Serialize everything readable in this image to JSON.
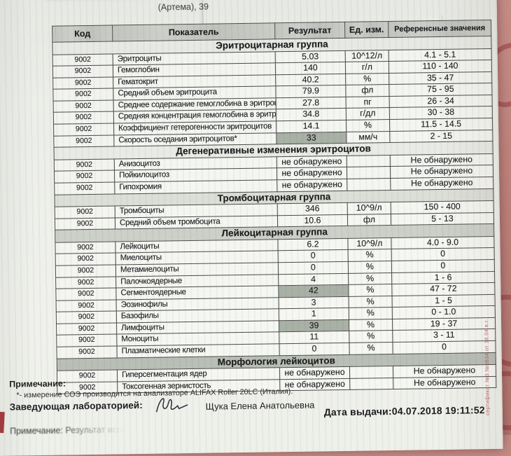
{
  "photo": {
    "top_line": "(Артема), 39",
    "side_stamp": "сертификат №3 №0834 от 18.04 в.г.",
    "fabric_color": "#c0857f",
    "fabric_swirl_color": "#943a40"
  },
  "table": {
    "columns": [
      "Код",
      "Показатель",
      "Результат",
      "Ед. изм.",
      "Референсные значения"
    ],
    "highlight_color": "#a9b1a6",
    "sections": [
      {
        "title": "Эритроцитарная группа",
        "bg": "#e7e9e4",
        "rows": [
          {
            "code": "9002",
            "name": "Эритроциты",
            "result": "5.03",
            "unit": "10^12/л",
            "ref": "4.1 - 5.1",
            "highlight": false
          },
          {
            "code": "9002",
            "name": "Гемоглобин",
            "result": "140",
            "unit": "г/л",
            "ref": "110 - 140",
            "highlight": false
          },
          {
            "code": "9002",
            "name": "Гематокрит",
            "result": "40.2",
            "unit": "%",
            "ref": "35 - 47",
            "highlight": false
          },
          {
            "code": "9002",
            "name": "Средний объем эритроцита",
            "result": "79.9",
            "unit": "фл",
            "ref": "75 - 95",
            "highlight": false
          },
          {
            "code": "9002",
            "name": "Среднее содержание гемоглобина в эритроците",
            "result": "27.8",
            "unit": "пг",
            "ref": "26 - 34",
            "highlight": false
          },
          {
            "code": "9002",
            "name": "Средняя концентрация гемоглобина в эритроците",
            "result": "34.8",
            "unit": "г/дл",
            "ref": "30 - 38",
            "highlight": false
          },
          {
            "code": "9002",
            "name": "Коэффициент гетерогенности эритроцитов",
            "result": "14.1",
            "unit": "%",
            "ref": "11.5 - 14.5",
            "highlight": false
          },
          {
            "code": "9002",
            "name": "Скорость оседания эритроцитов*",
            "result": "33",
            "unit": "мм/ч",
            "ref": "2 - 15",
            "highlight": true
          }
        ]
      },
      {
        "title": "Дегенеративные изменения эритроцитов",
        "bg": "#e9ebe6",
        "rows": [
          {
            "code": "9002",
            "name": "Анизоцитоз",
            "result": "не обнаружено",
            "unit": "",
            "ref": "Не обнаружено",
            "highlight": false
          },
          {
            "code": "9002",
            "name": "Пойкилоцитоз",
            "result": "не обнаружено",
            "unit": "",
            "ref": "Не обнаружено",
            "highlight": false
          },
          {
            "code": "9002",
            "name": "Гипохромия",
            "result": "не обнаружено",
            "unit": "",
            "ref": "Не обнаружено",
            "highlight": false
          }
        ]
      },
      {
        "title": "Тромбоцитарная группа",
        "bg": "#dcdfd8",
        "rows": [
          {
            "code": "9002",
            "name": "Тромбоциты",
            "result": "346",
            "unit": "10^9/л",
            "ref": "150 - 400",
            "highlight": false
          },
          {
            "code": "9002",
            "name": "Средний объем тромбоцита",
            "result": "10.6",
            "unit": "фл",
            "ref": "5 - 13",
            "highlight": false
          }
        ]
      },
      {
        "title": "Лейкоцитарная группа",
        "bg": "#ccd0c9",
        "rows": [
          {
            "code": "9002",
            "name": "Лейкоциты",
            "result": "6.2",
            "unit": "10^9/л",
            "ref": "4.0 - 9.0",
            "highlight": false
          },
          {
            "code": "9002",
            "name": "Миелоциты",
            "result": "0",
            "unit": "%",
            "ref": "0",
            "highlight": false
          },
          {
            "code": "9002",
            "name": "Метамиелоциты",
            "result": "0",
            "unit": "%",
            "ref": "0",
            "highlight": false
          },
          {
            "code": "9002",
            "name": "Палочкоядерные",
            "result": "4",
            "unit": "%",
            "ref": "1 - 6",
            "highlight": false
          },
          {
            "code": "9002",
            "name": "Сегментоядерные",
            "result": "42",
            "unit": "%",
            "ref": "47 - 72",
            "highlight": true
          },
          {
            "code": "9002",
            "name": "Эозинофилы",
            "result": "3",
            "unit": "%",
            "ref": "1 - 5",
            "highlight": false
          },
          {
            "code": "9002",
            "name": "Базофилы",
            "result": "1",
            "unit": "%",
            "ref": "0 - 1.0",
            "highlight": false
          },
          {
            "code": "9002",
            "name": "Лимфоциты",
            "result": "39",
            "unit": "%",
            "ref": "19 - 37",
            "highlight": true
          },
          {
            "code": "9002",
            "name": "Моноциты",
            "result": "11",
            "unit": "%",
            "ref": "3 - 11",
            "highlight": false
          },
          {
            "code": "9002",
            "name": "Плазматические клетки",
            "result": "0",
            "unit": "%",
            "ref": "0",
            "highlight": false
          }
        ]
      },
      {
        "title": "Морфология лейкоцитов",
        "bg": "#b9bfb6",
        "rows": [
          {
            "code": "9002",
            "name": "Гиперсегментация ядер",
            "result": "не обнаружено",
            "unit": "",
            "ref": "Не обнаружено",
            "highlight": false
          },
          {
            "code": "9002",
            "name": "Токсогенная зернистость",
            "result": "не обнаружено",
            "unit": "",
            "ref": "Не обнаружено",
            "highlight": false
          }
        ]
      }
    ]
  },
  "footer": {
    "note_label": "Примечание:",
    "note_text": "*- измерение СОЭ производится на анализаторе ALIFAX Roller 20LC (Италия).",
    "lab_head_label": "Заведующая лабораторией:",
    "lab_head_name": "Щука Елена Анатольевна",
    "issue_date": "Дата выдачи:04.07.2018 19:11:52",
    "bottom_note": "Примечание: Результат иссле"
  }
}
